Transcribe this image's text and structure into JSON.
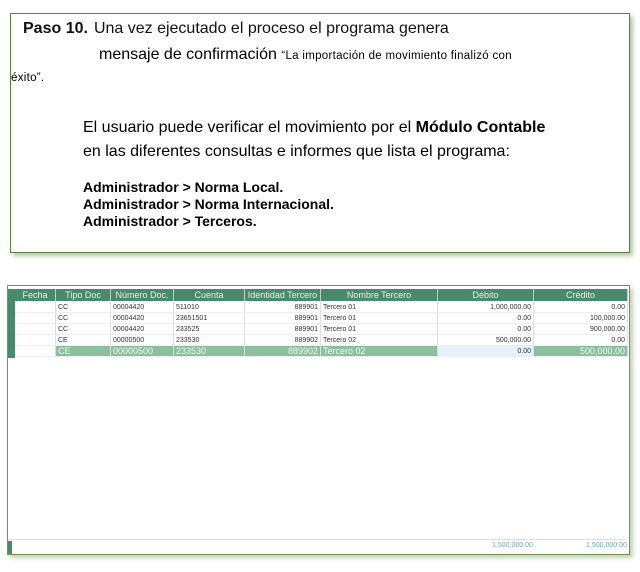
{
  "instructions": {
    "step_label": "Paso 10.",
    "line1": "Una vez ejecutado el proceso el programa genera",
    "line2": "mensaje de confirmación",
    "message_part1": "“La importación de movimiento finalizó con",
    "message_part2": "éxito”.",
    "verify_text_before": "El usuario puede verificar el movimiento por el",
    "verify_module": "Módulo Contable",
    "verify_text_after": "en las diferentes consultas e informes que lista el programa:",
    "paths": [
      "Administrador >  Norma Local.",
      "Administrador >  Norma Internacional.",
      "Administrador >  Terceros."
    ]
  },
  "grid": {
    "columns": [
      "Fecha",
      "Tipo Doc",
      "Número Doc.",
      "Cuenta",
      "Identidad Tercero",
      "Nombre Tercero",
      "Débito",
      "Crédito"
    ],
    "rows": [
      [
        "",
        "CC",
        "00004420",
        "511010",
        "889901",
        "Tercero 01",
        "1,000,000.00",
        "0.00"
      ],
      [
        "",
        "CC",
        "00004420",
        "23651501",
        "889901",
        "Tercero 01",
        "0.00",
        "100,000.00"
      ],
      [
        "",
        "CC",
        "00004420",
        "233525",
        "889901",
        "Tercero 01",
        "0.00",
        "900,000.00"
      ],
      [
        "",
        "CE",
        "00000500",
        "233530",
        "889902",
        "Tercero 02",
        "500,000.00",
        "0.00"
      ],
      [
        "",
        "CE",
        "00000500",
        "233530",
        "889902",
        "Tercero 02",
        "0.00",
        "500,000.00"
      ]
    ],
    "selected_row": 4,
    "totals": {
      "debito": "1,500,000.00",
      "credito": "1,500,000.00"
    },
    "header_color": "#4a8a6c",
    "selected_color": "#8cbf9e"
  }
}
